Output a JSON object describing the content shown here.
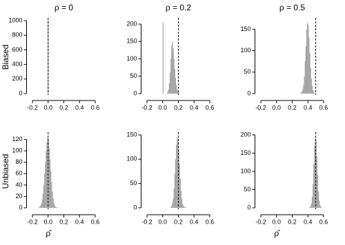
{
  "chart_data": [
    {
      "type": "histogram",
      "title": "ρ = 0",
      "ylabel": "Biased",
      "color": "#a0a0a0",
      "reference_line": 0,
      "bins": [
        -0.005,
        0.005
      ],
      "counts": [
        1000
      ],
      "xlim": [
        -0.24,
        0.64
      ],
      "xticks": [
        -0.2,
        {
          "value": 0,
          "label": "0.0"
        },
        0.2,
        0.4,
        0.6
      ],
      "ylim": [
        0,
        1000
      ],
      "yticks": [
        0,
        200,
        400,
        600,
        800,
        1000
      ]
    },
    {
      "type": "histogram",
      "title": "ρ = 0.2",
      "color": "#a0a0a0",
      "reference_line": 0.2,
      "bins": [
        0.0,
        0.01,
        0.02,
        0.03,
        0.04,
        0.05,
        0.06,
        0.07,
        0.08,
        0.09,
        0.1,
        0.11,
        0.12,
        0.13,
        0.14,
        0.15,
        0.16,
        0.17,
        0.18,
        0.19,
        0.2,
        0.21,
        0.22,
        0.23,
        0.24,
        0.25
      ],
      "counts": [
        205,
        0,
        0,
        0,
        0,
        2,
        5,
        12,
        30,
        60,
        100,
        140,
        150,
        130,
        100,
        70,
        45,
        25,
        12,
        6,
        3,
        1,
        0,
        0,
        0
      ],
      "xlim": [
        -0.24,
        0.64
      ],
      "xticks": [
        -0.2,
        {
          "value": 0,
          "label": "0.0"
        },
        0.2,
        0.4,
        0.6
      ],
      "ylim": [
        0,
        210
      ],
      "yticks": [
        0,
        50,
        100,
        150,
        200
      ]
    },
    {
      "type": "histogram",
      "title": "ρ = 0.5",
      "color": "#a0a0a0",
      "reference_line": 0.5,
      "bins": [
        0.3,
        0.31,
        0.32,
        0.33,
        0.34,
        0.35,
        0.36,
        0.37,
        0.38,
        0.39,
        0.4,
        0.41,
        0.42,
        0.43,
        0.44,
        0.45,
        0.46,
        0.47,
        0.48,
        0.49,
        0.5,
        0.51,
        0.52
      ],
      "counts": [
        1,
        2,
        5,
        10,
        20,
        40,
        75,
        110,
        150,
        165,
        160,
        130,
        95,
        60,
        35,
        18,
        8,
        4,
        2,
        1,
        0,
        0
      ],
      "xlim": [
        -0.24,
        0.64
      ],
      "xticks": [
        -0.2,
        {
          "value": 0,
          "label": "0.0"
        },
        0.2,
        0.4,
        0.6
      ],
      "ylim": [
        0,
        170
      ],
      "yticks": [
        0,
        50,
        100,
        150
      ]
    },
    {
      "type": "histogram",
      "ylabel": "Unbiased",
      "xlabel": "ρ̂",
      "color": "#a0a0a0",
      "reference_line": 0,
      "bins": [
        -0.12,
        -0.11,
        -0.1,
        -0.09,
        -0.08,
        -0.07,
        -0.06,
        -0.05,
        -0.04,
        -0.03,
        -0.02,
        -0.01,
        0.0,
        0.01,
        0.02,
        0.03,
        0.04,
        0.05,
        0.06,
        0.07,
        0.08,
        0.09,
        0.1,
        0.11,
        0.12
      ],
      "counts": [
        1,
        2,
        4,
        8,
        15,
        25,
        40,
        60,
        80,
        100,
        115,
        125,
        120,
        105,
        85,
        65,
        45,
        28,
        16,
        8,
        4,
        2,
        1,
        1
      ],
      "xlim": [
        -0.24,
        0.64
      ],
      "xticks": [
        -0.2,
        {
          "value": 0,
          "label": "0.0"
        },
        0.2,
        0.4,
        0.6
      ],
      "ylim": [
        0,
        128
      ],
      "yticks": [
        0,
        20,
        40,
        60,
        80,
        100,
        120
      ]
    },
    {
      "type": "histogram",
      "color": "#a0a0a0",
      "reference_line": 0.2,
      "bins": [
        0.1,
        0.11,
        0.12,
        0.13,
        0.14,
        0.15,
        0.16,
        0.17,
        0.18,
        0.19,
        0.2,
        0.21,
        0.22,
        0.23,
        0.24,
        0.25,
        0.26,
        0.27,
        0.28,
        0.29,
        0.3
      ],
      "counts": [
        2,
        5,
        10,
        20,
        40,
        70,
        100,
        130,
        145,
        140,
        120,
        90,
        60,
        35,
        18,
        8,
        4,
        2,
        1,
        1
      ],
      "xlim": [
        -0.24,
        0.64
      ],
      "xticks": [
        -0.2,
        {
          "value": 0,
          "label": "0.0"
        },
        0.2,
        0.4,
        0.6
      ],
      "ylim": [
        0,
        150
      ],
      "yticks": [
        0,
        50,
        100,
        150
      ]
    },
    {
      "type": "histogram",
      "xlabel": "ρ̂",
      "color": "#a0a0a0",
      "reference_line": 0.5,
      "bins": [
        0.42,
        0.43,
        0.44,
        0.45,
        0.46,
        0.47,
        0.48,
        0.49,
        0.5,
        0.51,
        0.52,
        0.53,
        0.54,
        0.55,
        0.56,
        0.57,
        0.58
      ],
      "counts": [
        2,
        5,
        12,
        30,
        65,
        120,
        170,
        195,
        185,
        140,
        90,
        45,
        20,
        8,
        3,
        1
      ],
      "xlim": [
        -0.24,
        0.64
      ],
      "xticks": [
        -0.2,
        {
          "value": 0,
          "label": "0.0"
        },
        0.2,
        0.4,
        0.6
      ],
      "ylim": [
        0,
        200
      ],
      "yticks": [
        0,
        50,
        100,
        150,
        200
      ]
    }
  ]
}
